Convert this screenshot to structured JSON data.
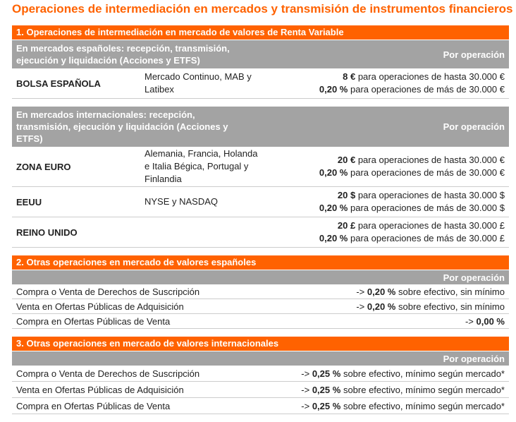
{
  "title": "Operaciones de intermediación en mercados y transmisión de instrumentos financieros",
  "sections": [
    {
      "heading": "1. Operaciones de intermediación en mercado de valores de Renta Variable",
      "groups": [
        {
          "header": "En mercados españoles: recepción, transmisión, ejecución y liquidación (Acciones y ETFS)",
          "header_right": "Por operación",
          "rows": [
            {
              "name": "BOLSA ESPAÑOLA",
              "markets": "Mercado Continuo, MAB y Latibex",
              "fees": [
                {
                  "amount": "8 €",
                  "text": "para operaciones de hasta 30.000 €"
                },
                {
                  "amount": "0,20 %",
                  "text": "para operaciones de más de 30.000 €"
                }
              ]
            }
          ]
        },
        {
          "header": "En mercados internacionales: recepción, transmisión, ejecución y liquidación (Acciones y ETFS)",
          "header_right": "Por operación",
          "rows": [
            {
              "name": "ZONA EURO",
              "markets": "Alemania, Francia, Holanda e Italia Bégica, Portugal y Finlandia",
              "fees": [
                {
                  "amount": "20 €",
                  "text": "para operaciones de hasta 30.000 €"
                },
                {
                  "amount": "0,20 %",
                  "text": "para operaciones de más de 30.000 €"
                }
              ]
            },
            {
              "name": "EEUU",
              "markets": "NYSE y NASDAQ",
              "fees": [
                {
                  "amount": "20 $",
                  "text": "para operaciones de hasta 30.000 $"
                },
                {
                  "amount": "0,20 %",
                  "text": "para operaciones de más de 30.000 $"
                }
              ]
            },
            {
              "name": "REINO UNIDO",
              "markets": "",
              "fees": [
                {
                  "amount": "20 £",
                  "text": "para operaciones de hasta 30.000 £"
                },
                {
                  "amount": "0,20 %",
                  "text": "para operaciones de más de 30.000 £"
                }
              ]
            }
          ]
        }
      ]
    },
    {
      "heading": "2. Otras operaciones en mercado de valores españoles",
      "header_right": "Por operación",
      "rows": [
        {
          "name": "Compra o Venta de Derechos de Suscripción",
          "prefix": "->",
          "amount": "0,20 %",
          "text": "sobre efectivo, sin mínimo"
        },
        {
          "name": "Venta en Ofertas Públicas de Adquisición",
          "prefix": "->",
          "amount": "0,20 %",
          "text": "sobre efectivo, sin mínimo"
        },
        {
          "name": "Compra en Ofertas Públicas de Venta",
          "prefix": "->",
          "amount": "0,00 %"
        }
      ]
    },
    {
      "heading": "3. Otras operaciones en mercado de valores internacionales",
      "header_right": "Por operación",
      "rows": [
        {
          "name": "Compra o Venta de Derechos de Suscripción",
          "prefix": "->",
          "amount": "0,25 %",
          "text": "sobre efectivo, mínimo según mercado*"
        },
        {
          "name": "Venta en Ofertas Públicas de Adquisición",
          "prefix": "->",
          "amount": "0,25 %",
          "text": "sobre efectivo, mínimo según mercado*"
        },
        {
          "name": "Compra en Ofertas Públicas de Venta",
          "prefix": "->",
          "amount": "0,25 %",
          "text": "sobre efectivo, mínimo según mercado*"
        }
      ]
    }
  ]
}
